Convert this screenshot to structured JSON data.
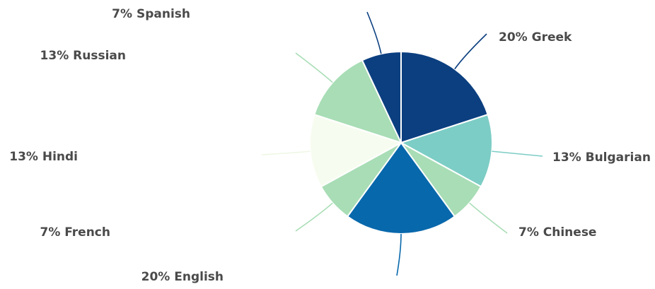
{
  "chart_data": {
    "type": "pie",
    "title": "",
    "start_angle_deg": 0,
    "direction": "clockwise",
    "label_format": "{pct}% {name}",
    "slices": [
      {
        "name": "Greek",
        "value": 20,
        "color": "#0b3f80"
      },
      {
        "name": "Bulgarian",
        "value": 13,
        "color": "#7ccdc5"
      },
      {
        "name": "Chinese",
        "value": 7,
        "color": "#a8ddb5"
      },
      {
        "name": "English",
        "value": 20,
        "color": "#0868ac"
      },
      {
        "name": "French",
        "value": 7,
        "color": "#a8ddb5"
      },
      {
        "name": "Hindi",
        "value": 13,
        "color": "#f7fcf0"
      },
      {
        "name": "Russian",
        "value": 13,
        "color": "#a8ddb5"
      },
      {
        "name": "Spanish",
        "value": 7,
        "color": "#0b3f80"
      }
    ],
    "label_text_color": "#4a4a4a",
    "slice_border_color": "#ffffff"
  }
}
